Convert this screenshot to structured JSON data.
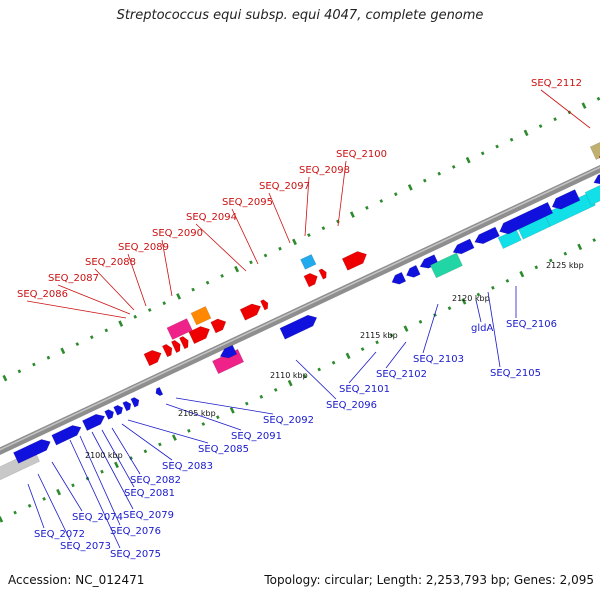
{
  "title": "Streptococcus equi subsp. equi 4047, complete genome",
  "footer": {
    "accession": "Accession: NC_012471",
    "summary": "Topology: circular; Length: 2,253,793 bp; Genes: 2,095"
  },
  "colors": {
    "backbone": "#8e8e8e",
    "red_label": "#cc1111",
    "blue_label": "#1a1acc",
    "gene_red": "#ee0000",
    "gene_blue": "#1111dd",
    "gene_cyan": "#11e0e8",
    "gene_teal": "#22d5a5",
    "gene_magenta": "#ee2288",
    "gene_orange": "#ff8800",
    "gene_olive": "#c0b070",
    "gene_gray": "#c8c8c8",
    "gene_skyblue": "#22aaee",
    "dots_green": "#2d8a2d"
  },
  "ticks": [
    "2100 kbp",
    "2105 kbp",
    "2110 kbp",
    "2115 kbp",
    "2120 kbp",
    "2125 kbp"
  ],
  "labels_top": [
    "SEQ_2086",
    "SEQ_2087",
    "SEQ_2088",
    "SEQ_2089",
    "SEQ_2090",
    "SEQ_2094",
    "SEQ_2095",
    "SEQ_2097",
    "SEQ_2098",
    "SEQ_2100",
    "SEQ_2112"
  ],
  "labels_bottom": [
    "SEQ_2072",
    "SEQ_2073",
    "SEQ_2074",
    "SEQ_2075",
    "SEQ_2076",
    "SEQ_2079",
    "SEQ_2081",
    "SEQ_2082",
    "SEQ_2083",
    "SEQ_2085",
    "SEQ_2091",
    "SEQ_2092",
    "SEQ_2096",
    "SEQ_2101",
    "SEQ_2102",
    "SEQ_2103",
    "gldA",
    "SEQ_2105",
    "SEQ_2106"
  ]
}
